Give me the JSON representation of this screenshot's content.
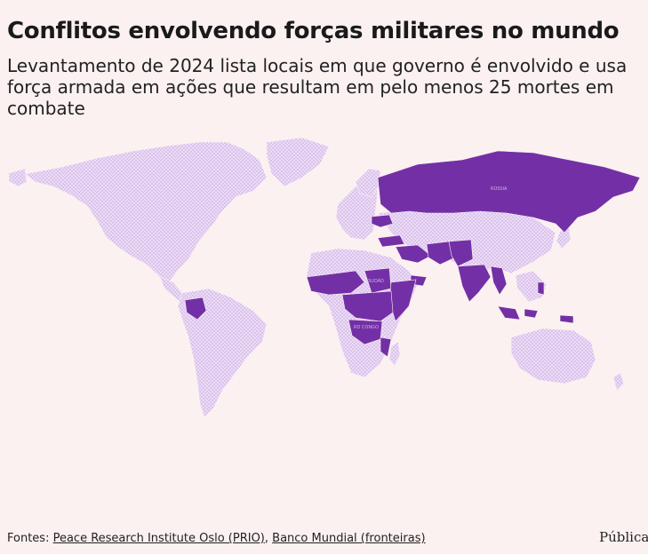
{
  "title": "Conflitos envolvendo forças militares no mundo",
  "subtitle": "Levantamento de 2024 lista locais em que governo é envolvido e usa força armada em ações que resultam em pelo menos 25 mortes em combate",
  "map": {
    "highlight_color": "#7330a6",
    "base_pattern_color": "#dcc8f0",
    "background_color": "#fcf1f1",
    "conflict_countries": [
      "Rússia",
      "Ucrânia",
      "Síria",
      "Iraque",
      "Israel",
      "Iêmen",
      "Afeganistão",
      "Paquistão",
      "Índia",
      "Mianmar",
      "Colômbia",
      "Mali",
      "Burkina Faso",
      "Níger",
      "Nigéria",
      "Sudão",
      "Etiópia",
      "Somália",
      "Camarões",
      "República Centro-Africana",
      "Sudão do Sul",
      "RD Congo",
      "Uganda",
      "Quênia",
      "Moçambique",
      "Indonésia",
      "Filipinas",
      "Irã",
      "Turquia",
      "Tailândia",
      "Chade"
    ],
    "labels": {
      "russia": "RÚSSIA",
      "sudan": "SUDÃO",
      "drc": "RD CONGO"
    }
  },
  "footer": {
    "prefix": "Fontes: ",
    "source1": "Peace Research Institute Oslo (PRIO)",
    "separator": ", ",
    "source2": "Banco Mundial (fronteiras)"
  },
  "brand": "Pública"
}
